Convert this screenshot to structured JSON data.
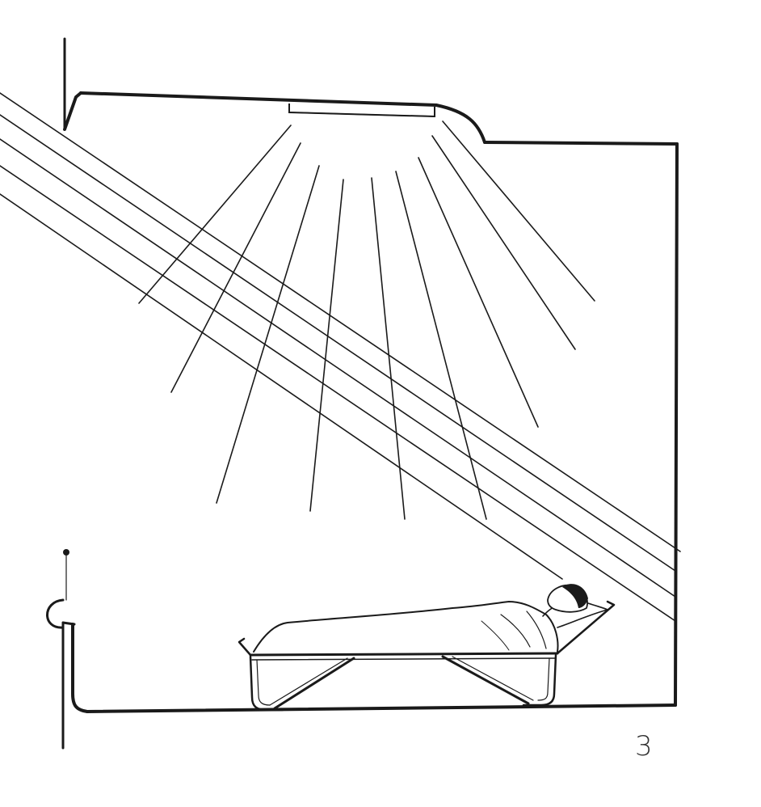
{
  "page_number": "3",
  "colors": {
    "ink": "#1a1a1a",
    "background": "#ffffff",
    "page_number": "#333333"
  }
}
